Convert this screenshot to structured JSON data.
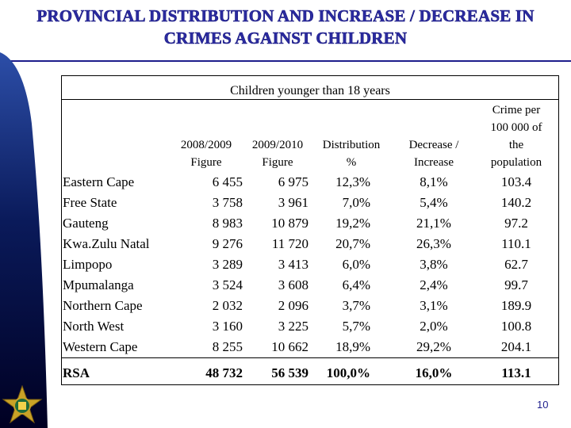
{
  "slide": {
    "title_line1": "PROVINCIAL DISTRIBUTION AND INCREASE / DECREASE IN",
    "title_line2": "CRIMES AGAINST CHILDREN",
    "page_number": "10",
    "colors": {
      "title": "#2b2ba0",
      "rule": "#1e1e8c",
      "sidebar_dark": "#000033",
      "sidebar_light": "#2c4ea8"
    }
  },
  "table": {
    "caption": "Children younger than 18 years",
    "headers": {
      "col1_a": "2008/2009",
      "col1_b": "Figure",
      "col2_a": "2009/2010",
      "col2_b": "Figure",
      "col3_a": "Distribution",
      "col3_b": "%",
      "col4_a": "Decrease /",
      "col4_b": "Increase",
      "col5_a": "Crime per",
      "col5_b": "100 000  of",
      "col5_c": "the",
      "col5_d": "population"
    },
    "rows": [
      {
        "province": "Eastern Cape",
        "fig2008": "6 455",
        "fig2009": "6 975",
        "distribution": "12,3%",
        "change": "8,1%",
        "per100k": "103.4"
      },
      {
        "province": "Free State",
        "fig2008": "3 758",
        "fig2009": "3 961",
        "distribution": "7,0%",
        "change": "5,4%",
        "per100k": "140.2"
      },
      {
        "province": "Gauteng",
        "fig2008": "8 983",
        "fig2009": "10 879",
        "distribution": "19,2%",
        "change": "21,1%",
        "per100k": "97.2"
      },
      {
        "province": "Kwa.Zulu Natal",
        "fig2008": "9 276",
        "fig2009": "11 720",
        "distribution": "20,7%",
        "change": "26,3%",
        "per100k": "110.1"
      },
      {
        "province": "Limpopo",
        "fig2008": "3 289",
        "fig2009": "3 413",
        "distribution": "6,0%",
        "change": "3,8%",
        "per100k": "62.7"
      },
      {
        "province": "Mpumalanga",
        "fig2008": "3 524",
        "fig2009": "3 608",
        "distribution": "6,4%",
        "change": "2,4%",
        "per100k": "99.7"
      },
      {
        "province": "Northern Cape",
        "fig2008": "2 032",
        "fig2009": "2 096",
        "distribution": "3,7%",
        "change": "3,1%",
        "per100k": "189.9"
      },
      {
        "province": "North West",
        "fig2008": "3 160",
        "fig2009": "3 225",
        "distribution": "5,7%",
        "change": "2,0%",
        "per100k": "100.8"
      },
      {
        "province": "Western Cape",
        "fig2008": "8 255",
        "fig2009": "10 662",
        "distribution": "18,9%",
        "change": "29,2%",
        "per100k": "204.1"
      }
    ],
    "total": {
      "province": "RSA",
      "fig2008": "48 732",
      "fig2009": "56 539",
      "distribution": "100,0%",
      "change": "16,0%",
      "per100k": "113.1"
    }
  }
}
